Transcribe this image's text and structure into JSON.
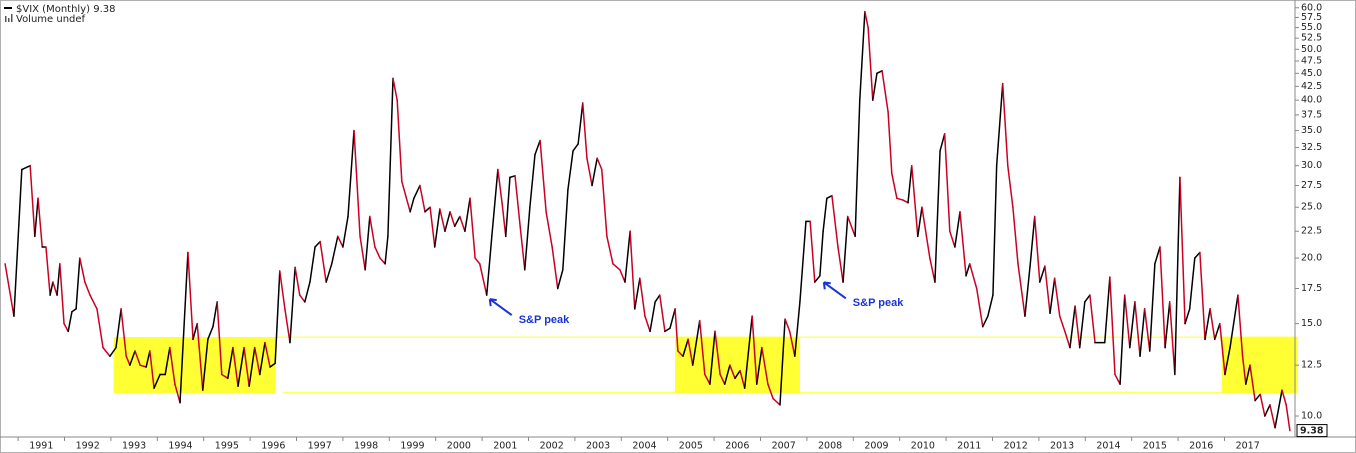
{
  "chart_data": {
    "type": "line",
    "title": "$VIX (Monthly)",
    "subtitle": "Volume undef",
    "log_scale": true,
    "grid": false,
    "up_color": "#000000",
    "down_color": "#cc0022",
    "highlight_color": "#ffff33",
    "xlim": [
      1990.61,
      2018.52
    ],
    "xticks": [
      1991,
      1992,
      1993,
      1994,
      1995,
      1996,
      1997,
      1998,
      1999,
      2000,
      2001,
      2002,
      2003,
      2004,
      2005,
      2006,
      2007,
      2008,
      2009,
      2010,
      2011,
      2012,
      2013,
      2014,
      2015,
      2016,
      2017
    ],
    "ylim": [
      9.2,
      61
    ],
    "yticks": [
      {
        "value": 10,
        "label": "10.0"
      },
      {
        "value": 12.5,
        "label": "12.5"
      },
      {
        "value": 15,
        "label": "15.0"
      },
      {
        "value": 17.5,
        "label": "17.5"
      },
      {
        "value": 20,
        "label": "20.0"
      },
      {
        "value": 22.5,
        "label": "22.5"
      },
      {
        "value": 25,
        "label": "25.0"
      },
      {
        "value": 27.5,
        "label": "27.5"
      },
      {
        "value": 30,
        "label": "30.0"
      },
      {
        "value": 32.5,
        "label": "32.5"
      },
      {
        "value": 35,
        "label": "35.0"
      },
      {
        "value": 37.5,
        "label": "37.5"
      },
      {
        "value": 40,
        "label": "40.0"
      },
      {
        "value": 42.5,
        "label": "42.5"
      },
      {
        "value": 45,
        "label": "45.0"
      },
      {
        "value": 47.5,
        "label": "47.5"
      },
      {
        "value": 50,
        "label": "50.0"
      },
      {
        "value": 52.5,
        "label": "52.5"
      },
      {
        "value": 55,
        "label": "55.0"
      },
      {
        "value": 57.5,
        "label": "57.5"
      },
      {
        "value": 60,
        "label": "60.0"
      }
    ],
    "highlights": [
      {
        "x": [
          1993.06,
          1996.54
        ],
        "y": [
          11.06,
          14.14
        ]
      },
      {
        "x": [
          2005.16,
          2007.85
        ],
        "y": [
          11.06,
          14.14
        ]
      },
      {
        "x": [
          2016.94,
          2018.58
        ],
        "y": [
          11.06,
          14.14
        ]
      }
    ],
    "reference_lines": [
      {
        "value": 14.14,
        "x": [
          1996.54,
          2018.58
        ]
      },
      {
        "value": 11.1,
        "x": [
          1996.7,
          2016.94
        ]
      }
    ],
    "annotations": [
      {
        "text": "S&P peak",
        "x": 2001.1,
        "y": 17
      },
      {
        "text": "S&P peak",
        "x": 2008.3,
        "y": 18.3
      }
    ],
    "series": [
      {
        "name": "$VIX",
        "color": "#cc0022",
        "x": [
          1990.72,
          1990.91,
          1991.08,
          1991.26,
          1991.36,
          1991.43,
          1991.52,
          1991.6,
          1991.69,
          1991.75,
          1991.84,
          1991.9,
          1991.99,
          1992.08,
          1992.16,
          1992.25,
          1992.33,
          1992.44,
          1992.55,
          1992.7,
          1992.83,
          1992.98,
          1993.11,
          1993.22,
          1993.33,
          1993.41,
          1993.52,
          1993.63,
          1993.76,
          1993.84,
          1993.93,
          1994.06,
          1994.17,
          1994.27,
          1994.38,
          1994.49,
          1994.66,
          1994.77,
          1994.86,
          1994.98,
          1995.09,
          1995.2,
          1995.29,
          1995.39,
          1995.52,
          1995.63,
          1995.74,
          1995.87,
          1995.98,
          1996.1,
          1996.21,
          1996.32,
          1996.43,
          1996.54,
          1996.64,
          1996.75,
          1996.86,
          1996.97,
          1997.07,
          1997.18,
          1997.29,
          1997.4,
          1997.51,
          1997.64,
          1997.76,
          1997.89,
          1998.0,
          1998.11,
          1998.24,
          1998.37,
          1998.48,
          1998.58,
          1998.69,
          1998.8,
          1998.91,
          1998.97,
          1999.08,
          1999.17,
          1999.27,
          1999.45,
          1999.53,
          1999.66,
          1999.77,
          1999.88,
          1999.98,
          2000.09,
          2000.2,
          2000.31,
          2000.41,
          2000.52,
          2000.63,
          2000.74,
          2000.85,
          2000.95,
          2001.1,
          2001.21,
          2001.34,
          2001.43,
          2001.51,
          2001.6,
          2001.71,
          2001.82,
          2001.92,
          2002.03,
          2002.14,
          2002.25,
          2002.38,
          2002.51,
          2002.63,
          2002.74,
          2002.85,
          2002.96,
          2003.07,
          2003.17,
          2003.26,
          2003.37,
          2003.48,
          2003.58,
          2003.69,
          2003.82,
          2003.97,
          2004.08,
          2004.19,
          2004.29,
          2004.4,
          2004.51,
          2004.62,
          2004.73,
          2004.83,
          2004.94,
          2005.05,
          2005.16,
          2005.22,
          2005.33,
          2005.44,
          2005.54,
          2005.69,
          2005.8,
          2005.91,
          2006.02,
          2006.13,
          2006.23,
          2006.34,
          2006.45,
          2006.56,
          2006.66,
          2006.82,
          2006.92,
          2007.03,
          2007.16,
          2007.27,
          2007.42,
          2007.53,
          2007.63,
          2007.74,
          2007.85,
          2007.98,
          2008.07,
          2008.17,
          2008.28,
          2008.35,
          2008.43,
          2008.54,
          2008.67,
          2008.78,
          2008.88,
          2009.04,
          2009.14,
          2009.25,
          2009.32,
          2009.42,
          2009.51,
          2009.62,
          2009.75,
          2009.83,
          2009.94,
          2010.07,
          2010.18,
          2010.26,
          2010.39,
          2010.48,
          2010.65,
          2010.76,
          2010.87,
          2010.97,
          2011.08,
          2011.19,
          2011.3,
          2011.43,
          2011.51,
          2011.66,
          2011.79,
          2011.9,
          2012.01,
          2012.09,
          2012.22,
          2012.33,
          2012.44,
          2012.55,
          2012.7,
          2012.81,
          2012.91,
          2013.02,
          2013.13,
          2013.24,
          2013.34,
          2013.45,
          2013.56,
          2013.67,
          2013.78,
          2013.88,
          2013.99,
          2014.1,
          2014.21,
          2014.31,
          2014.42,
          2014.53,
          2014.64,
          2014.75,
          2014.85,
          2014.96,
          2015.07,
          2015.18,
          2015.28,
          2015.39,
          2015.5,
          2015.61,
          2015.72,
          2015.82,
          2015.93,
          2016.04,
          2016.15,
          2016.25,
          2016.36,
          2016.47,
          2016.58,
          2016.69,
          2016.79,
          2016.9,
          2017.01,
          2017.12,
          2017.29,
          2017.39,
          2017.46,
          2017.55,
          2017.66,
          2017.77,
          2017.87,
          2017.98,
          2018.09,
          2018.24,
          2018.33,
          2018.41
        ],
        "values": [
          19.5,
          15.5,
          29.5,
          30,
          22,
          26,
          21,
          21,
          17,
          18,
          17,
          19.5,
          15,
          14.5,
          15.8,
          16,
          20,
          18,
          17,
          16,
          13.5,
          13,
          13.5,
          16,
          13,
          12.5,
          13.3,
          12.5,
          12.4,
          13.3,
          11.3,
          12,
          12,
          13.5,
          11.5,
          10.6,
          20.5,
          14,
          15,
          11.2,
          14,
          14.8,
          16.5,
          12,
          11.8,
          13.5,
          11.4,
          13.5,
          11.4,
          13.5,
          12,
          13.8,
          12.4,
          12.6,
          18.9,
          16,
          13.8,
          19.2,
          17,
          16.5,
          18,
          21,
          21.5,
          18,
          19.5,
          22,
          21,
          24,
          35,
          22,
          19,
          24,
          21,
          20,
          19.5,
          22,
          44,
          40,
          28,
          24.5,
          26,
          27.5,
          24.5,
          25,
          21,
          24.8,
          22.5,
          24.5,
          23,
          24,
          22.5,
          26,
          20,
          19.5,
          17,
          22,
          29.5,
          25.5,
          22,
          28.5,
          28.7,
          23,
          19,
          25,
          31.5,
          33.5,
          24.5,
          21,
          17.5,
          19,
          27,
          32,
          33,
          39.5,
          31,
          27.5,
          31,
          29.5,
          22,
          19.5,
          19,
          18,
          22.5,
          16,
          18.3,
          15.5,
          14.5,
          16.5,
          17,
          14.5,
          14.7,
          16,
          13.3,
          13,
          14,
          12.5,
          15.2,
          12,
          11.5,
          14.5,
          12,
          11.5,
          12.5,
          11.8,
          12.2,
          11.3,
          15.5,
          11.5,
          13.5,
          11.5,
          10.8,
          10.5,
          15.3,
          14.5,
          13,
          16.5,
          23.5,
          23.5,
          18,
          18.5,
          22.5,
          26,
          26.3,
          21,
          18,
          24,
          22,
          40,
          59,
          55,
          40,
          45,
          45.5,
          38,
          29,
          26,
          25.8,
          25.5,
          30,
          22,
          25,
          20,
          18,
          32,
          34.5,
          22.5,
          21,
          24.5,
          18.5,
          19.5,
          17.5,
          14.8,
          15.5,
          17,
          30,
          43,
          30,
          25,
          19.5,
          15.5,
          19.3,
          24,
          18,
          19.3,
          15.7,
          18.3,
          15.5,
          14.5,
          13.5,
          16.2,
          13.5,
          16.5,
          17,
          13.8,
          13.8,
          13.8,
          18.4,
          12,
          11.5,
          17,
          13.5,
          16.5,
          13,
          16,
          13.3,
          19.5,
          21,
          13.5,
          16.5,
          12,
          28.5,
          15,
          16,
          20,
          20.5,
          14,
          16,
          14,
          15,
          12,
          13.5,
          17,
          13,
          11.5,
          12.5,
          10.7,
          11,
          10,
          10.5,
          9.5,
          11.2,
          10.5,
          9.38
        ]
      }
    ]
  }
}
